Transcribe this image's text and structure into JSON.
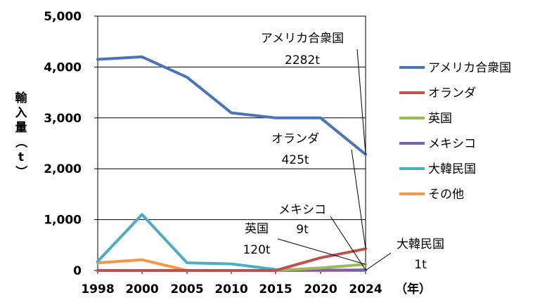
{
  "chart_data": {
    "type": "line",
    "x": [
      "1998",
      "2000",
      "2005",
      "2010",
      "2015",
      "2020",
      "2024"
    ],
    "xunit": "（年）",
    "ylabel": "輸入量（t）",
    "ylim": [
      0,
      5000
    ],
    "yticks": [
      "0",
      "1,000",
      "2,000",
      "3,000",
      "4,000",
      "5,000"
    ],
    "grid": true,
    "legend_position": "right",
    "series": [
      {
        "name": "アメリカ合衆国",
        "color": "#4a74b8",
        "values": [
          4150,
          4200,
          3800,
          3100,
          3000,
          3000,
          2282
        ]
      },
      {
        "name": "オランダ",
        "color": "#c0504d",
        "values": [
          0,
          0,
          0,
          0,
          0,
          250,
          425
        ]
      },
      {
        "name": "英国",
        "color": "#9bbb59",
        "values": [
          0,
          0,
          0,
          0,
          0,
          50,
          120
        ]
      },
      {
        "name": "メキシコ",
        "color": "#7f5fa6",
        "values": [
          0,
          0,
          0,
          0,
          0,
          5,
          9
        ]
      },
      {
        "name": "大韓民国",
        "color": "#4bacc6",
        "values": [
          180,
          1100,
          150,
          130,
          20,
          10,
          1
        ]
      },
      {
        "name": "その他",
        "color": "#f79646",
        "values": [
          150,
          210,
          0,
          0,
          0,
          0,
          0
        ]
      }
    ],
    "annotations": [
      {
        "series": "アメリカ合衆国",
        "line1": "アメリカ合衆国",
        "line2": "2282t"
      },
      {
        "series": "オランダ",
        "line1": "オランダ",
        "line2": "425t"
      },
      {
        "series": "メキシコ",
        "line1": "メキシコ",
        "line2": "9t"
      },
      {
        "series": "英国",
        "line1": "英国",
        "line2": "120t"
      },
      {
        "series": "大韓民国",
        "line1": "大韓民国",
        "line2": "1t"
      }
    ]
  }
}
